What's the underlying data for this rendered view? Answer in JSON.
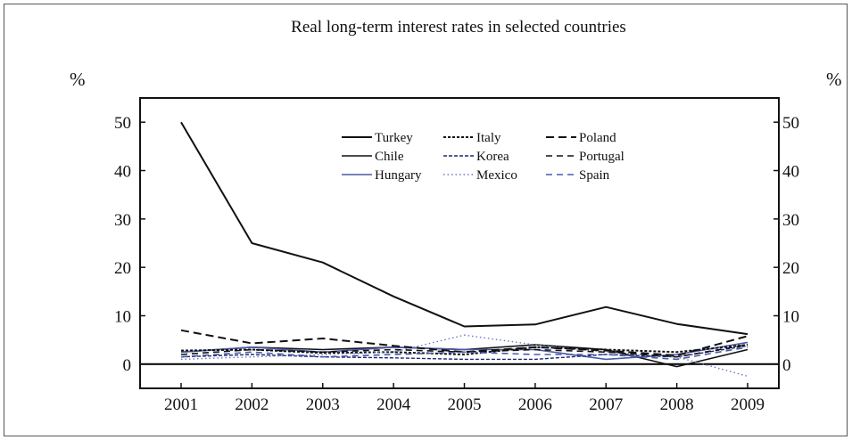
{
  "chart_data": {
    "type": "line",
    "title": "Real long-term interest rates in selected countries",
    "ylabel_left": "%",
    "ylabel_right": "%",
    "x": [
      "2001",
      "2002",
      "2003",
      "2004",
      "2005",
      "2006",
      "2007",
      "2008",
      "2009"
    ],
    "ylim": [
      -5,
      55
    ],
    "yticks": [
      0,
      10,
      20,
      30,
      40,
      50
    ],
    "legend_position": "top-center",
    "series": [
      {
        "name": "Turkey",
        "color": "#111111",
        "dash": "",
        "width": 2,
        "values": [
          50,
          25,
          21,
          14,
          7.8,
          8.2,
          11.8,
          8.3,
          6.2
        ]
      },
      {
        "name": "Chile",
        "color": "#111111",
        "dash": "",
        "width": 1.6,
        "values": [
          2.5,
          3.5,
          3,
          3.5,
          3,
          4,
          3,
          -0.5,
          3
        ]
      },
      {
        "name": "Hungary",
        "color": "#4a5aa8",
        "dash": "",
        "width": 1.6,
        "values": [
          2.5,
          3.5,
          2.5,
          3.5,
          3,
          3,
          1,
          2,
          4.5
        ]
      },
      {
        "name": "Italy",
        "color": "#111111",
        "dash": "3,2",
        "width": 2,
        "values": [
          2.8,
          3,
          2.3,
          2.5,
          2,
          3.5,
          3,
          2.5,
          4
        ]
      },
      {
        "name": "Korea",
        "color": "#1a2870",
        "dash": "4,2",
        "width": 1.4,
        "values": [
          1.5,
          2,
          1.5,
          1.3,
          1,
          1,
          2,
          1.5,
          3.8
        ]
      },
      {
        "name": "Mexico",
        "color": "#6a78c0",
        "dash": "1.5,3",
        "width": 1.4,
        "values": [
          1,
          1.5,
          2,
          2.5,
          6,
          4,
          2.5,
          1.5,
          -2.5
        ]
      },
      {
        "name": "Poland",
        "color": "#111111",
        "dash": "9,5",
        "width": 2,
        "values": [
          7,
          4.3,
          5.3,
          3.8,
          2.5,
          3.5,
          2.8,
          1.8,
          5.8
        ]
      },
      {
        "name": "Portugal",
        "color": "#111111",
        "dash": "7,5",
        "width": 1.6,
        "values": [
          2,
          3,
          2.5,
          3,
          2.5,
          3,
          2.5,
          1.5,
          4
        ]
      },
      {
        "name": "Spain",
        "color": "#4a5aa8",
        "dash": "7,5",
        "width": 1.6,
        "values": [
          1.5,
          2.5,
          1.5,
          2,
          2.5,
          2,
          2,
          1,
          3.5
        ]
      }
    ]
  }
}
